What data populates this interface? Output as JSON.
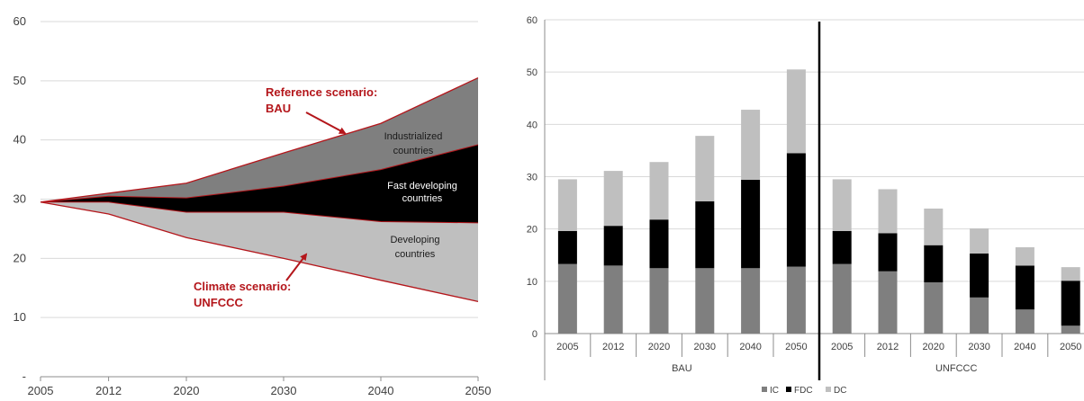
{
  "chart_data": [
    {
      "type": "area",
      "x": [
        2005,
        2012,
        2020,
        2030,
        2040,
        2050
      ],
      "xticks": [
        "2005",
        "2012",
        "2020",
        "2030",
        "2040",
        "2050"
      ],
      "yticks": [
        "-",
        "10",
        "20",
        "30",
        "40",
        "50",
        "60"
      ],
      "ylim": [
        0,
        60
      ],
      "grid": true,
      "boundaries": {
        "reference_bau": [
          29.5,
          31,
          32.7,
          37.8,
          42.8,
          50.5
        ],
        "bau_minus_ic": [
          29.5,
          30.5,
          30.2,
          32.2,
          35.0,
          39.2
        ],
        "fdc_dc_split": [
          29.5,
          29.5,
          27.8,
          27.8,
          26.2,
          26.0
        ],
        "climate_unfccc": [
          29.5,
          27.5,
          23.5,
          20.0,
          16.3,
          12.7
        ]
      },
      "regions": [
        {
          "lines": [
            "Industrialized",
            "countries"
          ],
          "color": "#7f7f7f",
          "text_color": "#1a1a1a"
        },
        {
          "lines": [
            "Fast developing",
            "countries"
          ],
          "color": "#000000",
          "text_color": "#ffffff"
        },
        {
          "lines": [
            "Developing",
            "countries"
          ],
          "color": "#bfbfbf",
          "text_color": "#1a1a1a"
        }
      ],
      "annotations": [
        {
          "lines": [
            "Reference scenario:",
            "BAU"
          ]
        },
        {
          "lines": [
            "Climate scenario:",
            "UNFCCC"
          ]
        }
      ]
    },
    {
      "type": "bar",
      "stacked": true,
      "groups": [
        {
          "label": "BAU",
          "categories": [
            "2005",
            "2012",
            "2020",
            "2030",
            "2040",
            "2050"
          ]
        },
        {
          "label": "UNFCCC",
          "categories": [
            "2005",
            "2012",
            "2020",
            "2030",
            "2040",
            "2050"
          ]
        }
      ],
      "series": [
        {
          "name": "IC",
          "color": "#7f7f7f",
          "values": [
            13.3,
            13.0,
            12.5,
            12.5,
            12.5,
            12.8,
            13.3,
            11.9,
            9.8,
            6.9,
            4.6,
            1.5
          ]
        },
        {
          "name": "FDC",
          "color": "#000000",
          "values": [
            6.3,
            7.6,
            9.3,
            12.8,
            16.9,
            21.7,
            6.3,
            7.3,
            7.1,
            8.4,
            8.4,
            8.6
          ]
        },
        {
          "name": "DC",
          "color": "#bfbfbf",
          "values": [
            9.9,
            10.5,
            11.0,
            12.5,
            13.4,
            16.0,
            9.9,
            8.4,
            7.0,
            4.8,
            3.5,
            2.6
          ]
        }
      ],
      "ylim": [
        0,
        60
      ],
      "yticks": [
        "0",
        "10",
        "20",
        "30",
        "40",
        "50",
        "60"
      ],
      "grid": true,
      "legend": "bottom"
    }
  ]
}
